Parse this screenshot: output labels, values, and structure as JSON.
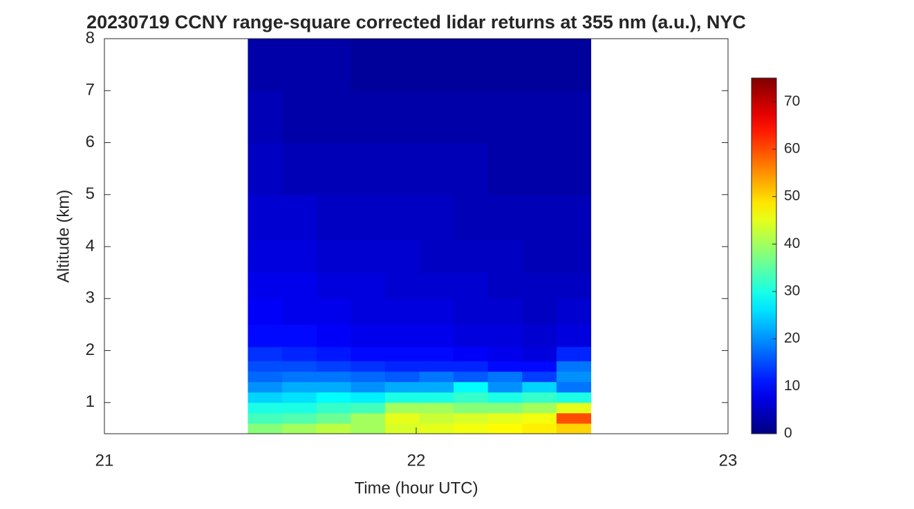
{
  "chart_data": {
    "type": "heatmap",
    "title": "20230719 CCNY range-square corrected lidar returns at 355 nm (a.u.), NYC",
    "x_label": "Time (hour UTC)",
    "y_label": "Altitude (km)",
    "xlim": [
      21,
      23
    ],
    "xticks": [
      21,
      22,
      23
    ],
    "ylim": [
      0.4,
      8
    ],
    "yticks": [
      1,
      2,
      3,
      4,
      5,
      6,
      7,
      8
    ],
    "colormap": "jet",
    "clim": [
      0,
      75
    ],
    "cticks": [
      0,
      10,
      20,
      30,
      40,
      50,
      60,
      70
    ],
    "x": [
      21.515,
      21.625,
      21.735,
      21.845,
      21.955,
      22.065,
      22.175,
      22.285,
      22.395,
      22.505
    ],
    "y": [
      0.5,
      0.7,
      0.9,
      1.1,
      1.3,
      1.5,
      1.7,
      1.9,
      2.25,
      2.75,
      3.25,
      3.75,
      4.5,
      5.5,
      6.5,
      7.5
    ],
    "z": [
      [
        38,
        40,
        42,
        40,
        44,
        45,
        46,
        47,
        48,
        50
      ],
      [
        33,
        34,
        36,
        40,
        45,
        43,
        44,
        45,
        46,
        60
      ],
      [
        30,
        30,
        32,
        33,
        40,
        40,
        38,
        38,
        40,
        45
      ],
      [
        25,
        26,
        28,
        27,
        30,
        30,
        32,
        30,
        32,
        30
      ],
      [
        20,
        22,
        22,
        20,
        22,
        22,
        28,
        20,
        25,
        18
      ],
      [
        17,
        18,
        18,
        17,
        16,
        18,
        16,
        18,
        14,
        20
      ],
      [
        15,
        15,
        14,
        13,
        12,
        12,
        12,
        10,
        10,
        18
      ],
      [
        13,
        12,
        11,
        10,
        10,
        10,
        9,
        8,
        7,
        12
      ],
      [
        10,
        10,
        9,
        8,
        8,
        8,
        7,
        7,
        6,
        7
      ],
      [
        9,
        8,
        8,
        7,
        7,
        7,
        6,
        6,
        5,
        6
      ],
      [
        8,
        8,
        7,
        7,
        6,
        6,
        6,
        5,
        5,
        5
      ],
      [
        7,
        7,
        6,
        6,
        6,
        5,
        5,
        5,
        4,
        4
      ],
      [
        6,
        6,
        5,
        5,
        5,
        5,
        4,
        4,
        4,
        4
      ],
      [
        5,
        4,
        4,
        4,
        4,
        4,
        4,
        3,
        3,
        3
      ],
      [
        4,
        3,
        3,
        3,
        3,
        3,
        3,
        3,
        3,
        3
      ],
      [
        3,
        3,
        3,
        2,
        2,
        2,
        2,
        2,
        2,
        2
      ]
    ]
  }
}
